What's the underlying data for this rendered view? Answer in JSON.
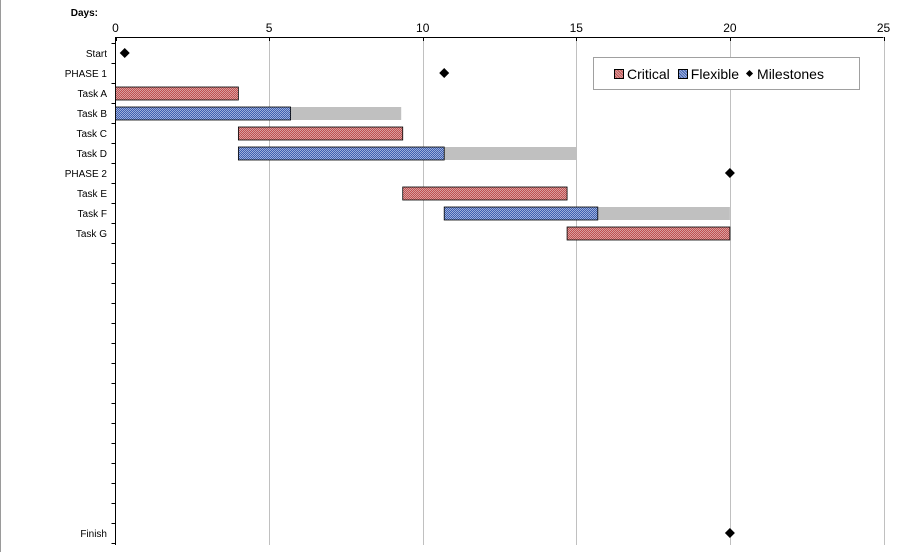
{
  "chart_data": {
    "type": "gantt",
    "axis_title": "Days:",
    "x_ticks": [
      0,
      5,
      10,
      15,
      20,
      25
    ],
    "xlim": [
      0,
      25
    ],
    "grid": "vertical",
    "legend_position": "top-right",
    "rows": [
      {
        "label": "Start",
        "kind": "milestone",
        "at": 0.3
      },
      {
        "label": "PHASE 1",
        "kind": "milestone",
        "at": 10.7
      },
      {
        "label": "Task A",
        "kind": "critical",
        "start": 0,
        "end": 4.0
      },
      {
        "label": "Task B",
        "kind": "flexible",
        "start": 0,
        "end": 5.7,
        "slack_end": 9.3
      },
      {
        "label": "Task C",
        "kind": "critical",
        "start": 4.0,
        "end": 9.35
      },
      {
        "label": "Task D",
        "kind": "flexible",
        "start": 4.0,
        "end": 10.7,
        "slack_end": 15.0
      },
      {
        "label": "PHASE 2",
        "kind": "milestone",
        "at": 20.0
      },
      {
        "label": "Task E",
        "kind": "critical",
        "start": 9.35,
        "end": 14.7
      },
      {
        "label": "Task F",
        "kind": "flexible",
        "start": 10.7,
        "end": 15.7,
        "slack_end": 20.0
      },
      {
        "label": "Task G",
        "kind": "critical",
        "start": 14.7,
        "end": 20.0
      }
    ],
    "empty_rows": 14,
    "finish": {
      "label": "Finish",
      "kind": "milestone",
      "at": 20.0
    },
    "legend": {
      "critical": "Critical",
      "flexible": "Flexible",
      "milestones": "Milestones"
    },
    "colors": {
      "critical_light": "#d9a0a0",
      "critical_dark": "#c05050",
      "flexible_light": "#9db0dc",
      "flexible_dark": "#3f5fb0",
      "slack": "#c0c0c0",
      "grid": "#c0c0c0",
      "milestone": "#000000"
    }
  }
}
